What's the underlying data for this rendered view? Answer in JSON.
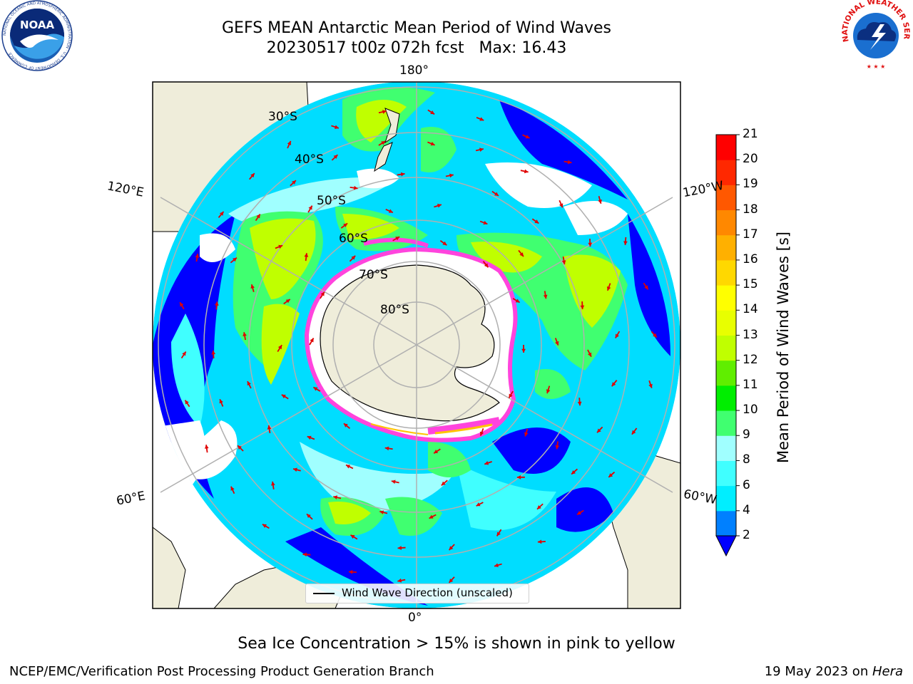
{
  "header": {
    "title_line1": "GEFS MEAN Antarctic Mean Period of Wind Waves",
    "title_line2": "20230517 t00z 072h fcst   Max: 16.43"
  },
  "logos": {
    "left": {
      "text": "NOAA",
      "ring_text": "NATIONAL OCEANIC AND ATMOSPHERIC ADMINISTRATION · U.S. DEPARTMENT OF COMMERCE",
      "icon": "noaa-logo-icon"
    },
    "right": {
      "ring_text": "NATIONAL WEATHER SERVICE",
      "icon": "nws-logo-icon"
    }
  },
  "map": {
    "longitude_labels": {
      "top": "180°",
      "bottom": "0°",
      "upper_left": "120°E",
      "upper_right": "120°W",
      "lower_left": "60°E",
      "lower_right": "60°W"
    },
    "latitude_labels": [
      "30°S",
      "40°S",
      "50°S",
      "60°S",
      "70°S",
      "80°S"
    ],
    "legend_label": "Wind Wave Direction (unscaled)",
    "colors": {
      "land": "#efedda",
      "ice_pink": "#ff44dd",
      "ice_yellow": "#ffc400",
      "arrow": "#e00000",
      "grid": "#b0b0b0"
    }
  },
  "colorbar": {
    "label": "Mean Period of Wind Waves [s]",
    "tick_labels": [
      "2",
      "4",
      "6",
      "8",
      "9",
      "10",
      "11",
      "12",
      "13",
      "14",
      "15",
      "16",
      "17",
      "18",
      "19",
      "20",
      "21"
    ],
    "colors": [
      "#0000ff",
      "#0080ff",
      "#00eeff",
      "#40ffff",
      "#a0ffff",
      "#40ff70",
      "#00ee00",
      "#60ee00",
      "#c0ff00",
      "#e8ff00",
      "#ffff00",
      "#ffd800",
      "#ffb000",
      "#ff8800",
      "#ff5800",
      "#ff2800",
      "#ff0000"
    ]
  },
  "footer": {
    "note": "Sea Ice Concentration > 15% is shown in pink to yellow",
    "branch": "NCEP/EMC/Verification Post Processing Product Generation Branch",
    "date_prefix": "19 May 2023 on ",
    "date_machine": "Hera"
  }
}
